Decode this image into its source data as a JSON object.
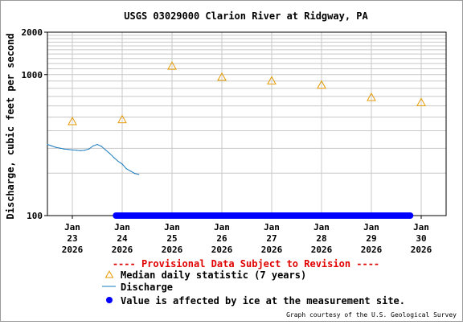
{
  "chart_data": {
    "type": "line",
    "title": "USGS 03029000 Clarion River at Ridgway, PA",
    "ylabel": "Discharge, cubic feet per second",
    "xlabel": "",
    "yscale": "log",
    "ylim": [
      100,
      2000
    ],
    "y_ticks": [
      "100",
      "1000",
      "2000"
    ],
    "xlim": [
      "2026-01-22T12:00",
      "2026-01-30T12:00"
    ],
    "x_ticks": [
      {
        "month": "Jan",
        "day": "23",
        "year": "2026",
        "x": "2026-01-23T00:00"
      },
      {
        "month": "Jan",
        "day": "24",
        "year": "2026",
        "x": "2026-01-24T00:00"
      },
      {
        "month": "Jan",
        "day": "25",
        "year": "2026",
        "x": "2026-01-25T00:00"
      },
      {
        "month": "Jan",
        "day": "26",
        "year": "2026",
        "x": "2026-01-26T00:00"
      },
      {
        "month": "Jan",
        "day": "27",
        "year": "2026",
        "x": "2026-01-27T00:00"
      },
      {
        "month": "Jan",
        "day": "28",
        "year": "2026",
        "x": "2026-01-28T00:00"
      },
      {
        "month": "Jan",
        "day": "29",
        "year": "2026",
        "x": "2026-01-29T00:00"
      },
      {
        "month": "Jan",
        "day": "30",
        "year": "2026",
        "x": "2026-01-30T00:00"
      }
    ],
    "grid": true,
    "series": [
      {
        "name": "Median daily statistic (7 years)",
        "kind": "marker-triangle",
        "color": "#e69a00",
        "points": [
          {
            "x": "2026-01-23T00:00",
            "y": 465
          },
          {
            "x": "2026-01-24T00:00",
            "y": 480
          },
          {
            "x": "2026-01-25T00:00",
            "y": 1150
          },
          {
            "x": "2026-01-26T00:00",
            "y": 960
          },
          {
            "x": "2026-01-27T00:00",
            "y": 905
          },
          {
            "x": "2026-01-28T00:00",
            "y": 845
          },
          {
            "x": "2026-01-29T00:00",
            "y": 690
          },
          {
            "x": "2026-01-30T00:00",
            "y": 635
          }
        ]
      },
      {
        "name": "Discharge",
        "kind": "line",
        "color": "#1a7bbf",
        "points": [
          {
            "x": "2026-01-22T12:00",
            "y": 320
          },
          {
            "x": "2026-01-22T14:00",
            "y": 312
          },
          {
            "x": "2026-01-22T16:00",
            "y": 305
          },
          {
            "x": "2026-01-22T18:00",
            "y": 301
          },
          {
            "x": "2026-01-22T20:00",
            "y": 297
          },
          {
            "x": "2026-01-22T22:00",
            "y": 295
          },
          {
            "x": "2026-01-23T00:00",
            "y": 292
          },
          {
            "x": "2026-01-23T02:00",
            "y": 291
          },
          {
            "x": "2026-01-23T04:00",
            "y": 289
          },
          {
            "x": "2026-01-23T06:00",
            "y": 291
          },
          {
            "x": "2026-01-23T08:00",
            "y": 297
          },
          {
            "x": "2026-01-23T10:00",
            "y": 312
          },
          {
            "x": "2026-01-23T12:00",
            "y": 320
          },
          {
            "x": "2026-01-23T14:00",
            "y": 310
          },
          {
            "x": "2026-01-23T16:00",
            "y": 292
          },
          {
            "x": "2026-01-23T18:00",
            "y": 276
          },
          {
            "x": "2026-01-23T20:00",
            "y": 258
          },
          {
            "x": "2026-01-23T22:00",
            "y": 243
          },
          {
            "x": "2026-01-24T00:00",
            "y": 232
          },
          {
            "x": "2026-01-24T02:00",
            "y": 215
          },
          {
            "x": "2026-01-24T04:00",
            "y": 207
          },
          {
            "x": "2026-01-24T06:00",
            "y": 199
          },
          {
            "x": "2026-01-24T08:00",
            "y": 196
          }
        ]
      },
      {
        "name": "Value is affected by ice at the measurement site.",
        "kind": "dots",
        "color": "#0000ff",
        "y": 100,
        "x_start": "2026-01-23T21:00",
        "x_end": "2026-01-29T19:00"
      }
    ],
    "annotations": [
      "---- Provisional Data Subject to Revision ----"
    ],
    "legend_position": "bottom"
  },
  "footer": {
    "credit": "Graph courtesy of the U.S. Geological Survey"
  }
}
